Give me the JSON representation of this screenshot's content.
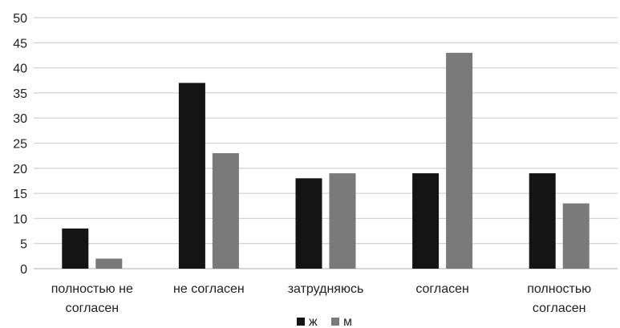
{
  "chart_data": {
    "type": "bar",
    "categories": [
      [
        "полностью не",
        "согласен"
      ],
      [
        "не согласен"
      ],
      [
        "затрудняюсь"
      ],
      [
        "согласен"
      ],
      [
        "полностью",
        "согласен"
      ]
    ],
    "series": [
      {
        "name": "ж",
        "color": "#141414",
        "values": [
          8,
          37,
          18,
          19,
          19
        ]
      },
      {
        "name": "м",
        "color": "#7a7a7a",
        "values": [
          2,
          23,
          19,
          43,
          13
        ]
      }
    ],
    "ylim": [
      0,
      50
    ],
    "yticks": [
      0,
      5,
      10,
      15,
      20,
      25,
      30,
      35,
      40,
      45,
      50
    ],
    "grid": true,
    "legend": "bottom-center",
    "title": "",
    "xlabel": "",
    "ylabel": ""
  }
}
